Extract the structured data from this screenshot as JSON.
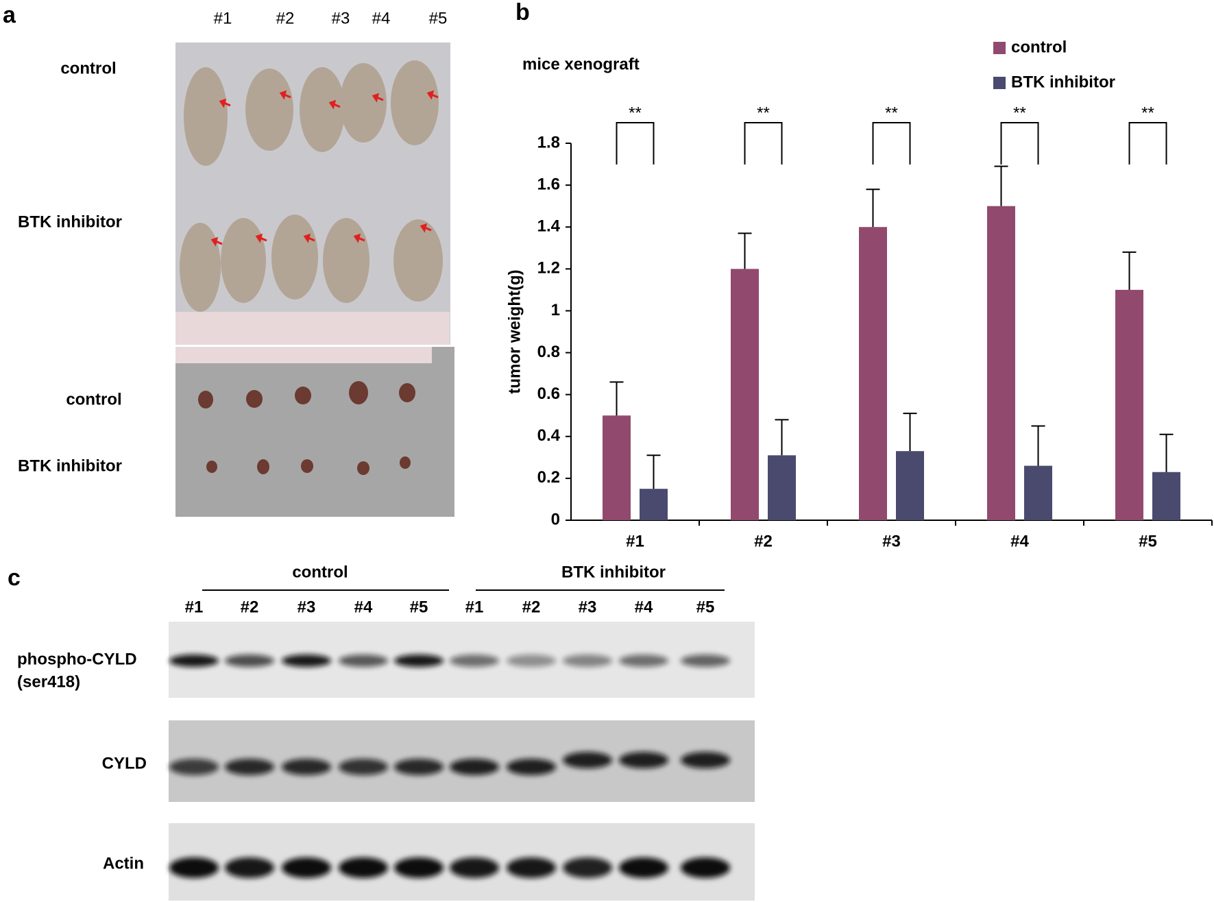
{
  "panel_a": {
    "letter": "a",
    "mouse_numbers": [
      "#1",
      "#2",
      "#3",
      "#4",
      "#5"
    ],
    "photo_rows": [
      "control",
      "BTK inhibitor"
    ],
    "tumor_rows": [
      "control",
      "BTK inhibitor"
    ]
  },
  "chart_data": {
    "type": "bar",
    "letter": "b",
    "title": "mice xenograft",
    "y_label": "tumor weight(g)",
    "categories": [
      "#1",
      "#2",
      "#3",
      "#4",
      "#5"
    ],
    "series": [
      {
        "name": "control",
        "color": "#914a6e",
        "values": [
          0.5,
          1.2,
          1.4,
          1.5,
          1.1
        ],
        "errors": [
          0.16,
          0.17,
          0.18,
          0.19,
          0.18
        ]
      },
      {
        "name": "BTK inhibitor",
        "color": "#4a4a6e",
        "values": [
          0.15,
          0.31,
          0.33,
          0.26,
          0.23
        ],
        "errors": [
          0.16,
          0.17,
          0.18,
          0.19,
          0.18
        ]
      }
    ],
    "annotations": [
      "**",
      "**",
      "**",
      "**",
      "**"
    ],
    "ylim": [
      0,
      1.8
    ],
    "yticks": [
      0,
      0.2,
      0.4,
      0.6,
      0.8,
      1,
      1.2,
      1.4,
      1.6,
      1.8
    ],
    "legend": "top-right"
  },
  "panel_c": {
    "letter": "c",
    "groups": [
      "control",
      "BTK inhibitor"
    ],
    "lanes": [
      "#1",
      "#2",
      "#3",
      "#4",
      "#5",
      "#1",
      "#2",
      "#3",
      "#4",
      "#5"
    ],
    "blots": [
      {
        "label": "phospho-CYLD",
        "sublabel": "(ser418)"
      },
      {
        "label": "CYLD"
      },
      {
        "label": "Actin"
      }
    ]
  }
}
